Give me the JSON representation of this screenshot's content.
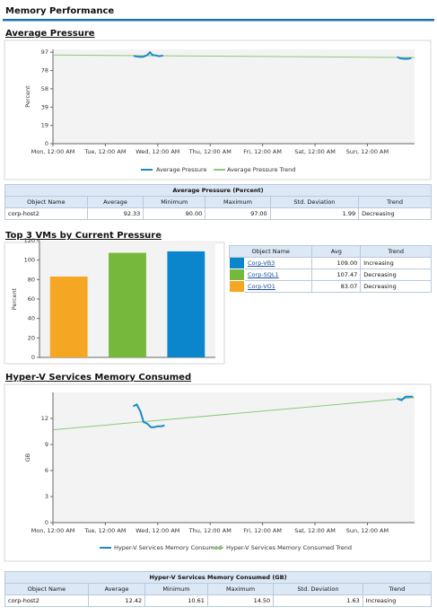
{
  "header": {
    "title": "Memory Performance"
  },
  "chart_data": [
    {
      "type": "line",
      "title": "Average Pressure",
      "y_label": "Percent",
      "xlim": [
        0,
        6.9
      ],
      "ylim": [
        0,
        100
      ],
      "grid": false,
      "xticks": [
        {
          "value": 0,
          "label": "Mon, 12:00 AM"
        },
        {
          "value": 1,
          "label": "Tue, 12:00 AM"
        },
        {
          "value": 2,
          "label": "Wed, 12:00 AM"
        },
        {
          "value": 3,
          "label": "Thu, 12:00 AM"
        },
        {
          "value": 4,
          "label": "Fri, 12:00 AM"
        },
        {
          "value": 5,
          "label": "Sat, 12:00 AM"
        },
        {
          "value": 6,
          "label": "Sun, 12:00 AM"
        }
      ],
      "yticks": [
        0,
        {
          "value": 19.4,
          "label": "19"
        },
        {
          "value": 38.8,
          "label": "39"
        },
        {
          "value": 58.2,
          "label": "58"
        },
        {
          "value": 77.6,
          "label": "78"
        },
        97
      ],
      "series": [
        {
          "name": "Average Pressure",
          "color": "#1b8ac9",
          "x": [
            1.54,
            1.6,
            1.67,
            1.73,
            1.8,
            1.85,
            1.9,
            1.97,
            2.03,
            2.1,
            4.0,
            6.57,
            6.63,
            6.7,
            6.77,
            6.84
          ],
          "values": [
            93,
            92.5,
            92,
            92.3,
            94,
            97,
            94,
            93.5,
            92.8,
            93.5,
            null,
            92,
            90.5,
            90,
            90,
            91
          ]
        },
        {
          "name": "Average Pressure Trend",
          "color": "#8cc97a",
          "x": [
            0,
            6.9
          ],
          "values": [
            94,
            91.3
          ]
        }
      ]
    },
    {
      "type": "bar",
      "title": "Top 3 VMs by Current Pressure",
      "y_label": "Percent",
      "ylim": [
        0,
        120
      ],
      "yticks": [
        0,
        20,
        40,
        60,
        80,
        100,
        120
      ],
      "grid": false,
      "values": [
        83.07,
        107.47,
        109.0
      ],
      "colors": [
        "#f5a623",
        "#76b83b",
        "#0b86cc"
      ]
    },
    {
      "type": "line",
      "title": "Hyper-V Services Memory Consumed",
      "y_label": "GB",
      "xlim": [
        0,
        6.9
      ],
      "ylim": [
        0,
        15
      ],
      "grid": false,
      "xticks": [
        {
          "value": 0,
          "label": "Mon, 12:00 AM"
        },
        {
          "value": 1,
          "label": "Tue, 12:00 AM"
        },
        {
          "value": 2,
          "label": "Wed, 12:00 AM"
        },
        {
          "value": 3,
          "label": "Thu, 12:00 AM"
        },
        {
          "value": 4,
          "label": "Fri, 12:00 AM"
        },
        {
          "value": 5,
          "label": "Sat, 12:00 AM"
        },
        {
          "value": 6,
          "label": "Sun, 12:00 AM"
        }
      ],
      "yticks": [
        0,
        3,
        6,
        9,
        12
      ],
      "series": [
        {
          "name": "Hyper-V Services Memory Consumed",
          "color": "#1b8ac9",
          "x": [
            1.53,
            1.6,
            1.67,
            1.73,
            1.8,
            1.87,
            1.93,
            2.0,
            2.07,
            2.13,
            4.0,
            6.57,
            6.65,
            6.73,
            6.8,
            6.87
          ],
          "values": [
            13.4,
            13.6,
            12.8,
            11.6,
            11.4,
            11.0,
            11.0,
            11.1,
            11.1,
            11.2,
            null,
            14.3,
            14.1,
            14.5,
            14.5,
            14.5
          ]
        },
        {
          "name": "Hyper-V Services Memory Consumed Trend",
          "color": "#8cc97a",
          "x": [
            0,
            6.9
          ],
          "values": [
            10.7,
            14.4
          ]
        }
      ]
    }
  ],
  "tables": [
    {
      "title": "Average Pressure (Percent)",
      "columns": [
        "Object Name",
        "Average",
        "Minimum",
        "Maximum",
        "Std. Deviation",
        "Trend"
      ],
      "rows": [
        [
          "corp-host2",
          "92.33",
          "90.00",
          "97.00",
          "1.99",
          "Decreasing"
        ]
      ]
    },
    {
      "columns": [
        "Object Name",
        "Avg",
        "Trend"
      ],
      "colors": [
        "#0b86cc",
        "#76b83b",
        "#f5a623"
      ],
      "rows": [
        [
          "Corp-VB3",
          "109.00",
          "Increasing"
        ],
        [
          "Corp-SQL1",
          "107.47",
          "Decreasing"
        ],
        [
          "Corp-VO1",
          "83.07",
          "Decreasing"
        ]
      ]
    },
    {
      "title": "Hyper-V Services Memory Consumed (GB)",
      "columns": [
        "Object Name",
        "Average",
        "Minimum",
        "Maximum",
        "Std. Deviation",
        "Trend"
      ],
      "rows": [
        [
          "corp-host2",
          "12.42",
          "10.61",
          "14.50",
          "1.63",
          "Increasing"
        ]
      ]
    }
  ]
}
